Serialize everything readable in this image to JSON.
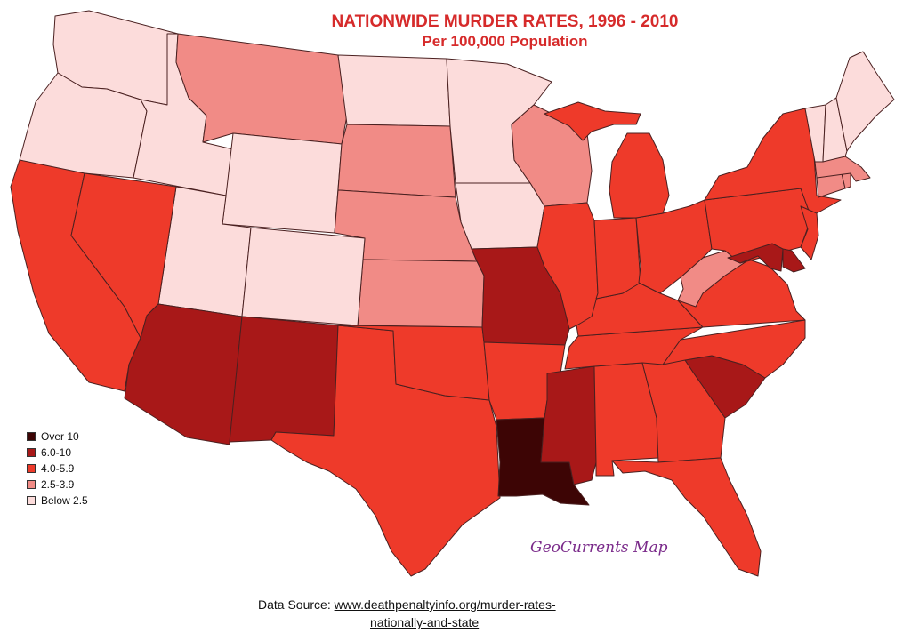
{
  "title": "NATIONWIDE MURDER RATES, 1996 - 2010",
  "subtitle": "Per 100,000 Population",
  "colors": {
    "over_10": "#3d0505",
    "r6_10": "#a81818",
    "r4_5_9": "#ee3a2a",
    "r2_5_3_9": "#f18b86",
    "below_2_5": "#fcdcdb"
  },
  "legend": [
    {
      "label": "Over 10",
      "color": "#3d0505"
    },
    {
      "label": "6.0-10",
      "color": "#a81818"
    },
    {
      "label": "4.0-5.9",
      "color": "#ee3a2a"
    },
    {
      "label": "2.5-3.9",
      "color": "#f18b86"
    },
    {
      "label": "Below 2.5",
      "color": "#fcdcdb"
    }
  ],
  "credit": "GeoCurrents Map",
  "source": {
    "prefix": "Data Source: ",
    "link_line1": "www.deathpenaltyinfo.org/murder-rates-",
    "link_line2": "nationally-and-state"
  },
  "states": [
    {
      "id": "washington",
      "cls": "below_2_5"
    },
    {
      "id": "oregon",
      "cls": "below_2_5"
    },
    {
      "id": "idaho",
      "cls": "below_2_5"
    },
    {
      "id": "montana",
      "cls": "r2_5_3_9"
    },
    {
      "id": "wyoming",
      "cls": "below_2_5"
    },
    {
      "id": "north-dakota",
      "cls": "below_2_5"
    },
    {
      "id": "south-dakota",
      "cls": "r2_5_3_9"
    },
    {
      "id": "minnesota",
      "cls": "below_2_5"
    },
    {
      "id": "wisconsin",
      "cls": "r2_5_3_9"
    },
    {
      "id": "iowa",
      "cls": "below_2_5"
    },
    {
      "id": "nebraska",
      "cls": "r2_5_3_9"
    },
    {
      "id": "kansas",
      "cls": "r2_5_3_9"
    },
    {
      "id": "utah",
      "cls": "below_2_5"
    },
    {
      "id": "colorado",
      "cls": "below_2_5"
    },
    {
      "id": "california",
      "cls": "r4_5_9"
    },
    {
      "id": "nevada",
      "cls": "r4_5_9"
    },
    {
      "id": "arizona",
      "cls": "r6_10"
    },
    {
      "id": "new-mexico",
      "cls": "r6_10"
    },
    {
      "id": "texas",
      "cls": "r4_5_9"
    },
    {
      "id": "oklahoma",
      "cls": "r4_5_9"
    },
    {
      "id": "missouri",
      "cls": "r6_10"
    },
    {
      "id": "arkansas",
      "cls": "r4_5_9"
    },
    {
      "id": "louisiana",
      "cls": "over_10"
    },
    {
      "id": "mississippi",
      "cls": "r6_10"
    },
    {
      "id": "alabama",
      "cls": "r4_5_9"
    },
    {
      "id": "georgia",
      "cls": "r4_5_9"
    },
    {
      "id": "florida",
      "cls": "r4_5_9"
    },
    {
      "id": "south-carolina",
      "cls": "r6_10"
    },
    {
      "id": "north-carolina",
      "cls": "r4_5_9"
    },
    {
      "id": "tennessee",
      "cls": "r4_5_9"
    },
    {
      "id": "kentucky",
      "cls": "r4_5_9"
    },
    {
      "id": "virginia",
      "cls": "r4_5_9"
    },
    {
      "id": "west-virginia",
      "cls": "r2_5_3_9"
    },
    {
      "id": "illinois",
      "cls": "r4_5_9"
    },
    {
      "id": "indiana",
      "cls": "r4_5_9"
    },
    {
      "id": "ohio",
      "cls": "r4_5_9"
    },
    {
      "id": "michigan-lower",
      "cls": "r4_5_9"
    },
    {
      "id": "michigan-upper",
      "cls": "r4_5_9"
    },
    {
      "id": "pennsylvania",
      "cls": "r4_5_9"
    },
    {
      "id": "new-york",
      "cls": "r4_5_9"
    },
    {
      "id": "new-jersey",
      "cls": "r4_5_9"
    },
    {
      "id": "maryland",
      "cls": "r6_10"
    },
    {
      "id": "delaware",
      "cls": "r6_10"
    },
    {
      "id": "connecticut",
      "cls": "r2_5_3_9"
    },
    {
      "id": "rhode-island",
      "cls": "r2_5_3_9"
    },
    {
      "id": "massachusetts",
      "cls": "r2_5_3_9"
    },
    {
      "id": "vermont",
      "cls": "below_2_5"
    },
    {
      "id": "new-hampshire",
      "cls": "below_2_5"
    },
    {
      "id": "maine",
      "cls": "below_2_5"
    }
  ]
}
